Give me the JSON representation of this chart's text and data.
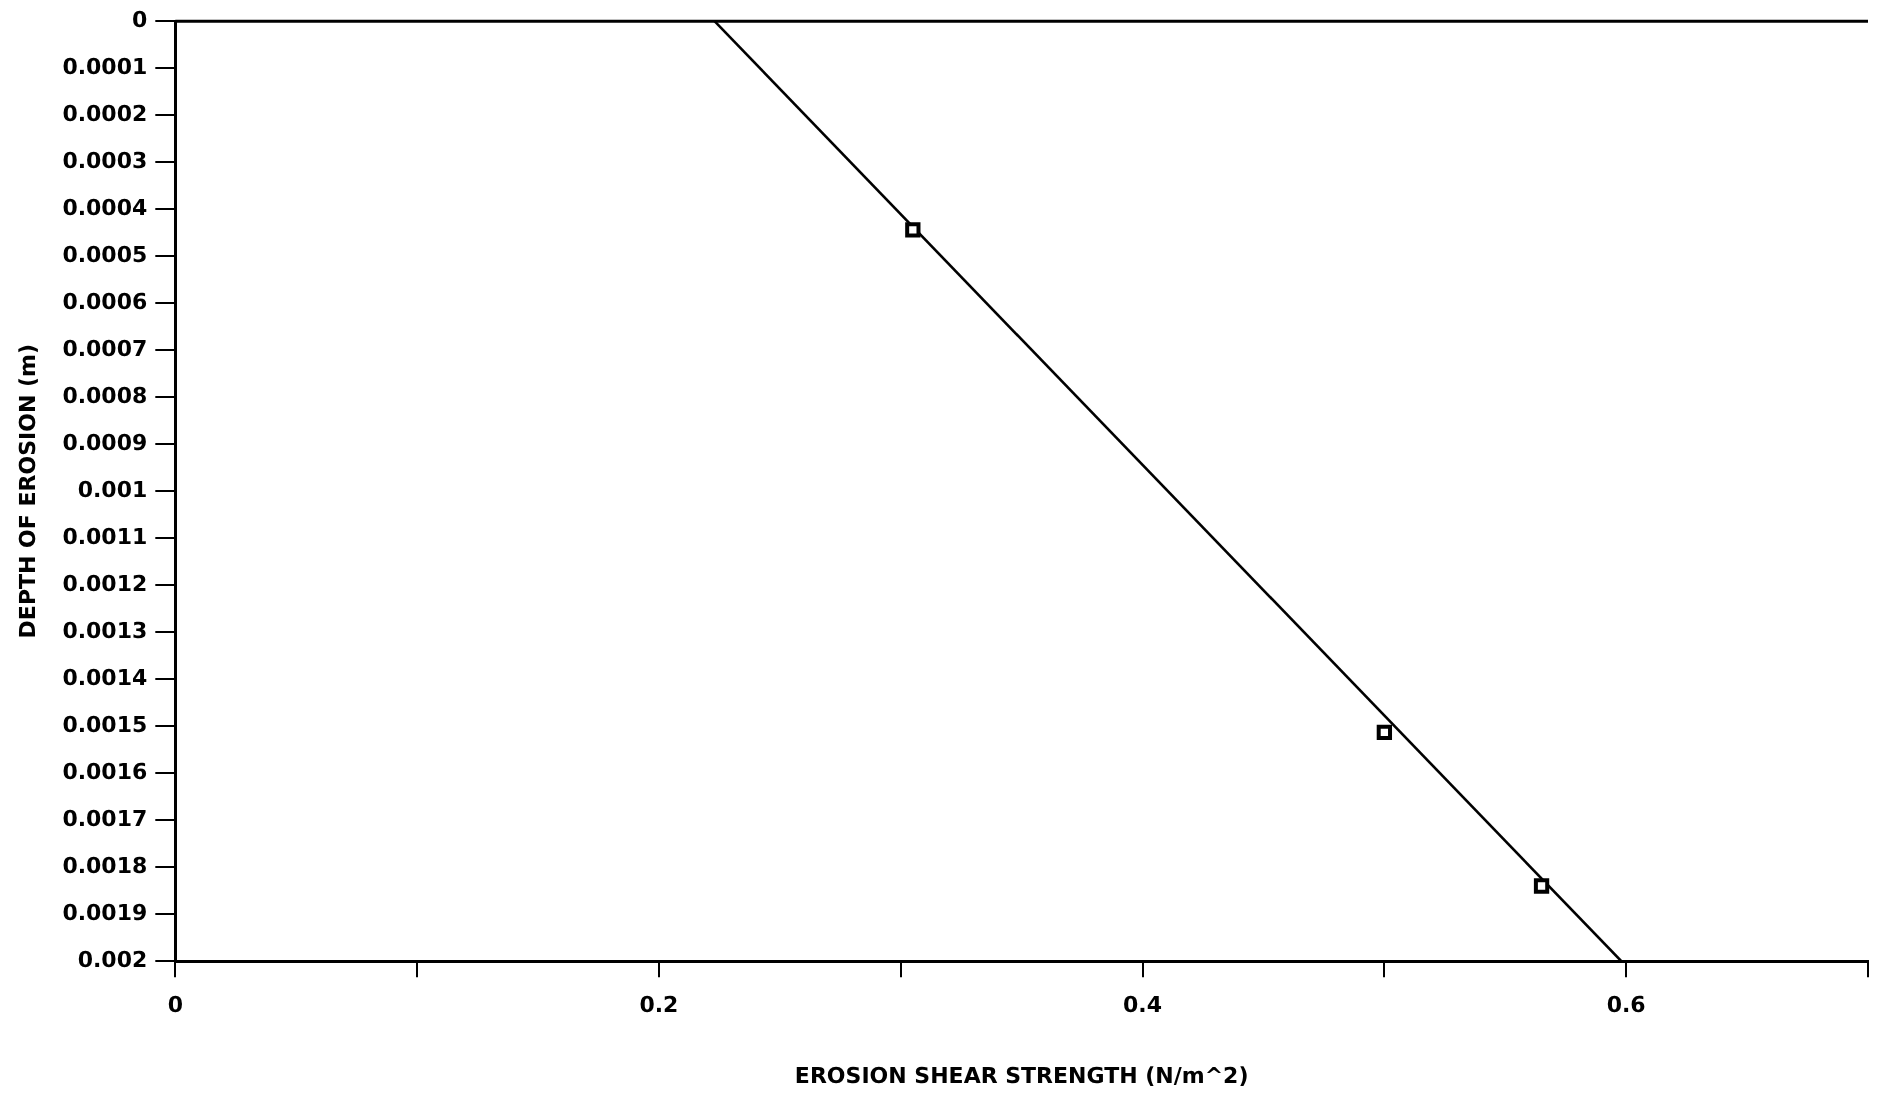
{
  "chart_data": {
    "type": "scatter",
    "xlabel": "EROSION SHEAR STRENGTH (N/m^2)",
    "ylabel": "DEPTH OF EROSION (m)",
    "series": [
      {
        "type": "scatter",
        "x": [
          0.305,
          0.5,
          0.565
        ],
        "values": [
          0.000444,
          0.001513,
          0.00184
        ],
        "color": "#000000",
        "marker": "square"
      },
      {
        "type": "line",
        "x": [
          0.223,
          0.598
        ],
        "values": [
          0,
          0.002
        ],
        "color": "#000000",
        "marker": "none",
        "line_style": "solid"
      }
    ],
    "xlim": [
      0,
      0.7
    ],
    "xticks": [
      0,
      {
        "value": 0.1,
        "label": null
      },
      0.2,
      {
        "value": 0.3,
        "label": null
      },
      0.4,
      {
        "value": 0.5,
        "label": null
      },
      0.6,
      {
        "value": 0.7,
        "label": null
      }
    ],
    "ylim": [
      0.002,
      0
    ],
    "yticks": [
      0,
      0.0001,
      0.0002,
      0.0003,
      0.0004,
      0.0005,
      0.0006,
      0.0007,
      0.0008,
      0.0009,
      0.001,
      0.0011,
      0.0012,
      0.0013,
      0.0014,
      0.0015,
      0.0016,
      0.0017,
      0.0018,
      0.0019,
      0.002
    ],
    "grid": false,
    "legend": false
  }
}
